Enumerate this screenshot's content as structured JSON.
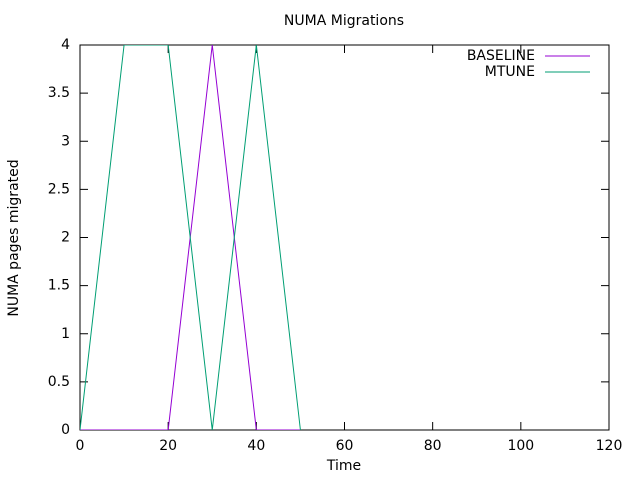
{
  "chart_data": {
    "type": "line",
    "title": "NUMA Migrations",
    "x_label": "Time",
    "y_label": "NUMA pages migrated",
    "x": [
      0,
      10,
      20,
      30,
      40,
      50
    ],
    "series": [
      {
        "name": "BASELINE",
        "color": "#9400d3",
        "values": [
          0,
          0,
          0,
          4,
          0,
          0
        ]
      },
      {
        "name": "MTUNE",
        "color": "#009e73",
        "values": [
          0,
          4,
          4,
          0,
          4,
          0
        ]
      }
    ],
    "xlim": [
      0,
      120
    ],
    "xticks": [
      0,
      20,
      40,
      60,
      80,
      100,
      120
    ],
    "ylim": [
      0,
      4
    ],
    "yticks": [
      0,
      0.5,
      1,
      1.5,
      2,
      2.5,
      3,
      3.5,
      4
    ],
    "legend": "top right",
    "grid": false
  }
}
